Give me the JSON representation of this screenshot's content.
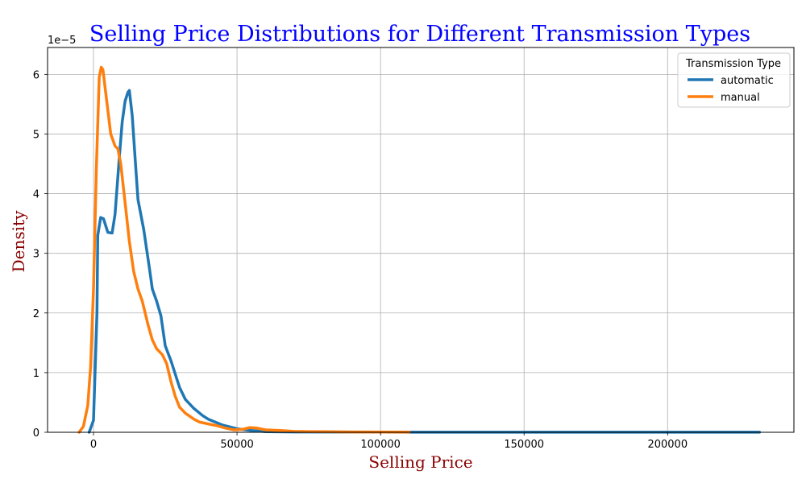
{
  "chart_data": {
    "type": "line",
    "title": "Selling Price Distributions for Different Transmission Types",
    "xlabel": "Selling Price",
    "ylabel": "Density",
    "y_offset_label": "1e−5",
    "xlim": [
      -16000,
      244000
    ],
    "ylim": [
      0,
      6.45
    ],
    "x_ticks": [
      0,
      50000,
      100000,
      150000,
      200000
    ],
    "x_tick_labels": [
      "0",
      "50000",
      "100000",
      "150000",
      "200000"
    ],
    "y_ticks": [
      0,
      1,
      2,
      3,
      4,
      5,
      6
    ],
    "y_tick_labels": [
      "0",
      "1",
      "2",
      "3",
      "4",
      "5",
      "6"
    ],
    "grid": true,
    "legend": {
      "title": "Transmission Type",
      "placement": "top-right"
    },
    "colors": {
      "title": "#0000ff",
      "axis_label": "#8b0000",
      "grid": "#b0b0b0"
    },
    "series": [
      {
        "name": "automatic",
        "color": "#1f77b4",
        "points": [
          [
            -1500,
            0
          ],
          [
            0,
            0.2
          ],
          [
            1200,
            2.0
          ],
          [
            1500,
            3.3
          ],
          [
            2500,
            3.6
          ],
          [
            3500,
            3.58
          ],
          [
            5000,
            3.35
          ],
          [
            6500,
            3.34
          ],
          [
            7500,
            3.65
          ],
          [
            9000,
            4.6
          ],
          [
            10000,
            5.2
          ],
          [
            11000,
            5.55
          ],
          [
            12000,
            5.7
          ],
          [
            12500,
            5.73
          ],
          [
            13500,
            5.3
          ],
          [
            14500,
            4.6
          ],
          [
            15500,
            3.9
          ],
          [
            17500,
            3.4
          ],
          [
            19500,
            2.75
          ],
          [
            20500,
            2.4
          ],
          [
            22000,
            2.2
          ],
          [
            23500,
            1.95
          ],
          [
            25000,
            1.45
          ],
          [
            27000,
            1.2
          ],
          [
            30000,
            0.75
          ],
          [
            32000,
            0.55
          ],
          [
            35000,
            0.4
          ],
          [
            38000,
            0.28
          ],
          [
            40000,
            0.22
          ],
          [
            45000,
            0.12
          ],
          [
            50000,
            0.06
          ],
          [
            55000,
            0.03
          ],
          [
            60000,
            0.01
          ],
          [
            70000,
            0.005
          ],
          [
            100000,
            0.003
          ],
          [
            150000,
            0.002
          ],
          [
            200000,
            0.002
          ],
          [
            232000,
            0.002
          ]
        ]
      },
      {
        "name": "manual",
        "color": "#ff7f0e",
        "points": [
          [
            -5000,
            0
          ],
          [
            -3500,
            0.1
          ],
          [
            -2000,
            0.45
          ],
          [
            -1000,
            1.1
          ],
          [
            0,
            2.4
          ],
          [
            1000,
            4.4
          ],
          [
            2000,
            5.95
          ],
          [
            2700,
            6.12
          ],
          [
            3300,
            6.08
          ],
          [
            4500,
            5.6
          ],
          [
            6000,
            5.0
          ],
          [
            7500,
            4.8
          ],
          [
            8500,
            4.75
          ],
          [
            9500,
            4.5
          ],
          [
            11000,
            3.85
          ],
          [
            12500,
            3.2
          ],
          [
            14000,
            2.7
          ],
          [
            15500,
            2.4
          ],
          [
            17000,
            2.2
          ],
          [
            19000,
            1.8
          ],
          [
            20500,
            1.55
          ],
          [
            22000,
            1.4
          ],
          [
            24000,
            1.3
          ],
          [
            25500,
            1.15
          ],
          [
            27000,
            0.85
          ],
          [
            28500,
            0.6
          ],
          [
            30000,
            0.42
          ],
          [
            32000,
            0.32
          ],
          [
            35000,
            0.22
          ],
          [
            37000,
            0.17
          ],
          [
            40000,
            0.14
          ],
          [
            43000,
            0.11
          ],
          [
            46000,
            0.07
          ],
          [
            49000,
            0.04
          ],
          [
            52000,
            0.05
          ],
          [
            54500,
            0.08
          ],
          [
            57000,
            0.07
          ],
          [
            60000,
            0.04
          ],
          [
            65000,
            0.03
          ],
          [
            70000,
            0.015
          ],
          [
            80000,
            0.01
          ],
          [
            90000,
            0.005
          ],
          [
            110000,
            0.003
          ]
        ]
      }
    ]
  }
}
